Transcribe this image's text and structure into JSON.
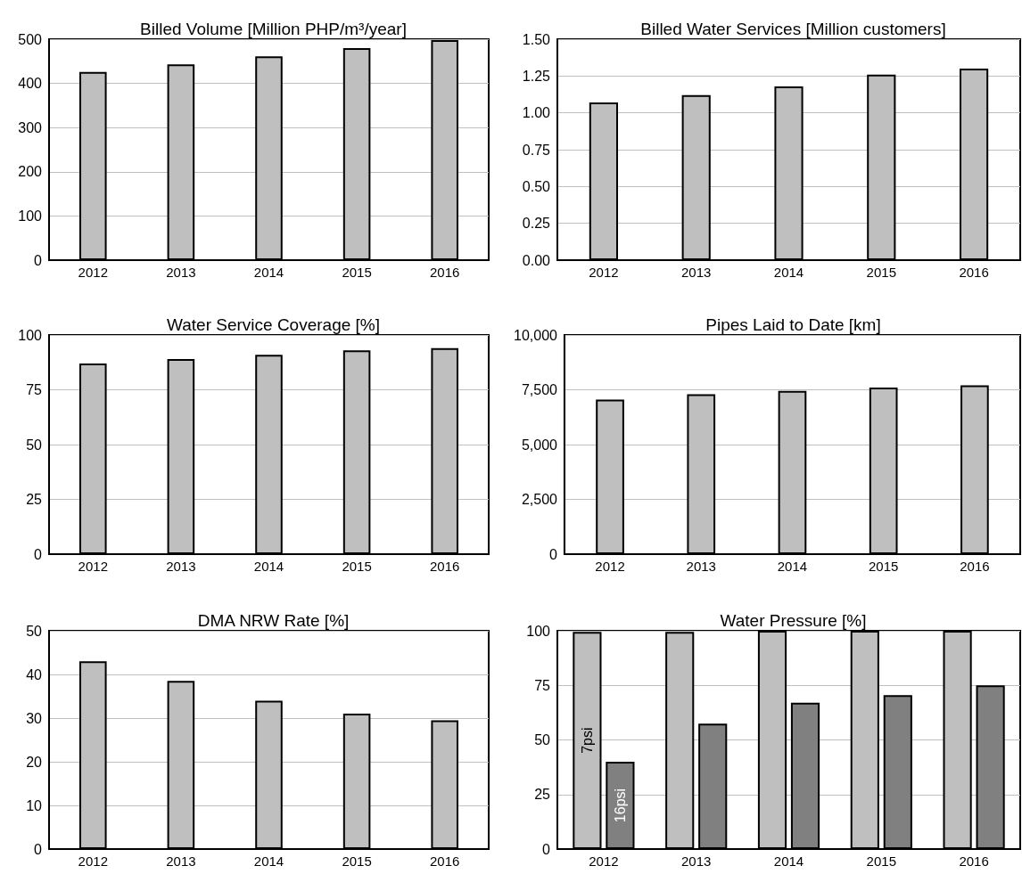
{
  "chart_data": [
    {
      "type": "bar",
      "title": "Billed Volume [Million PHP/m³/year]",
      "categories": [
        "2012",
        "2013",
        "2014",
        "2015",
        "2016"
      ],
      "values": [
        426,
        443,
        461,
        480,
        498
      ],
      "color": "#bfbfbf",
      "ylim": [
        0,
        500
      ],
      "yticks": [
        0,
        100,
        200,
        300,
        400,
        500
      ],
      "grid": "y"
    },
    {
      "type": "bar",
      "title": "Billed Water Services [Million customers]",
      "categories": [
        "2012",
        "2013",
        "2014",
        "2015",
        "2016"
      ],
      "values": [
        1.07,
        1.12,
        1.18,
        1.26,
        1.3
      ],
      "color": "#bfbfbf",
      "ylim": [
        0,
        1.5
      ],
      "yticks": [
        {
          "value": 0,
          "label": "0.00"
        },
        {
          "value": 0.25,
          "label": "0.25"
        },
        {
          "value": 0.5,
          "label": "0.50"
        },
        {
          "value": 0.75,
          "label": "0.75"
        },
        {
          "value": 1,
          "label": "1.00"
        },
        {
          "value": 1.25,
          "label": "1.25"
        },
        {
          "value": 1.5,
          "label": "1.50"
        }
      ],
      "grid": "y"
    },
    {
      "type": "bar",
      "title": "Water Service Coverage [%]",
      "categories": [
        "2012",
        "2013",
        "2014",
        "2015",
        "2016"
      ],
      "values": [
        87,
        89,
        91,
        93,
        94
      ],
      "color": "#bfbfbf",
      "ylim": [
        0,
        100
      ],
      "yticks": [
        0,
        25,
        50,
        75,
        100
      ],
      "grid": "y"
    },
    {
      "type": "bar",
      "title": "Pipes Laid to Date [km]",
      "categories": [
        "2012",
        "2013",
        "2014",
        "2015",
        "2016"
      ],
      "values": [
        7050,
        7300,
        7450,
        7600,
        7700
      ],
      "color": "#bfbfbf",
      "ylim": [
        0,
        10000
      ],
      "yticks": [
        0,
        {
          "value": 2500,
          "label": "2,500"
        },
        {
          "value": 5000,
          "label": "5,000"
        },
        {
          "value": 7500,
          "label": "7,500"
        },
        {
          "value": 10000,
          "label": "10,000"
        }
      ],
      "grid": "y"
    },
    {
      "type": "bar",
      "title": "DMA NRW Rate [%]",
      "categories": [
        "2012",
        "2013",
        "2014",
        "2015",
        "2016"
      ],
      "values": [
        43,
        38.5,
        34,
        31,
        29.5
      ],
      "color": "#bfbfbf",
      "ylim": [
        0,
        50
      ],
      "yticks": [
        0,
        10,
        20,
        30,
        40,
        50
      ],
      "grid": "y"
    },
    {
      "type": "bar",
      "title": "Water Pressure [%]",
      "categories": [
        "2012",
        "2013",
        "2014",
        "2015",
        "2016"
      ],
      "series": [
        {
          "name": "7psi",
          "color": "#bfbfbf",
          "values": [
            99.5,
            99.5,
            100,
            100,
            100
          ]
        },
        {
          "name": "16psi",
          "color": "#808080",
          "values": [
            40,
            57.5,
            67,
            70.5,
            75
          ]
        }
      ],
      "ylim": [
        0,
        100
      ],
      "yticks": [
        0,
        25,
        50,
        75,
        100
      ],
      "grid": "y"
    }
  ]
}
